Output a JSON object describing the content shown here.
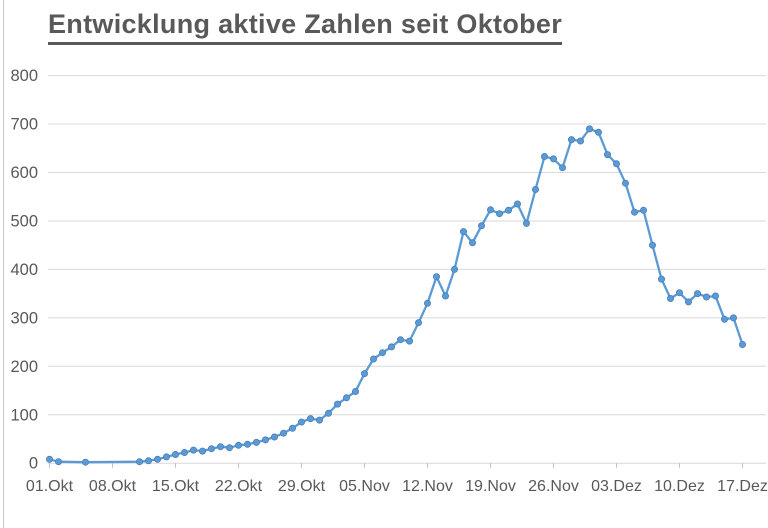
{
  "chart_data": {
    "type": "line",
    "title": "Entwicklung aktive Zahlen seit Oktober",
    "legend": "none",
    "grid": "horizontal",
    "marker": "circle",
    "ylim": [
      0,
      800
    ],
    "y_tick_step": 100,
    "y_tick_labels": [
      "0",
      "100",
      "200",
      "300",
      "400",
      "500",
      "600",
      "700",
      "800"
    ],
    "x_tick_labels": [
      "01.Okt",
      "08.Okt",
      "15.Okt",
      "22.Okt",
      "29.Okt",
      "05.Nov",
      "12.Nov",
      "19.Nov",
      "26.Nov",
      "03.Dez",
      "10.Dez",
      "17.Dez"
    ],
    "series_color": "#5B9BD5",
    "marker_edge_color": "#4A7EBB",
    "gridline_color": "#D9D9D9",
    "tick_color": "#BFBFBF",
    "label_color": "#595959",
    "title_color": "#595959",
    "points": [
      {
        "date": "01.Okt",
        "value": 8
      },
      {
        "date": "02.Okt",
        "value": 3
      },
      {
        "date": "05.Okt",
        "value": 2
      },
      {
        "date": "11.Okt",
        "value": 3
      },
      {
        "date": "12.Okt",
        "value": 5
      },
      {
        "date": "13.Okt",
        "value": 8
      },
      {
        "date": "14.Okt",
        "value": 13
      },
      {
        "date": "15.Okt",
        "value": 18
      },
      {
        "date": "16.Okt",
        "value": 22
      },
      {
        "date": "17.Okt",
        "value": 27
      },
      {
        "date": "18.Okt",
        "value": 25
      },
      {
        "date": "19.Okt",
        "value": 30
      },
      {
        "date": "20.Okt",
        "value": 34
      },
      {
        "date": "21.Okt",
        "value": 32
      },
      {
        "date": "22.Okt",
        "value": 37
      },
      {
        "date": "23.Okt",
        "value": 39
      },
      {
        "date": "24.Okt",
        "value": 43
      },
      {
        "date": "25.Okt",
        "value": 48
      },
      {
        "date": "26.Okt",
        "value": 54
      },
      {
        "date": "27.Okt",
        "value": 62
      },
      {
        "date": "28.Okt",
        "value": 72
      },
      {
        "date": "29.Okt",
        "value": 85
      },
      {
        "date": "30.Okt",
        "value": 92
      },
      {
        "date": "31.Okt",
        "value": 89
      },
      {
        "date": "01.Nov",
        "value": 103
      },
      {
        "date": "02.Nov",
        "value": 122
      },
      {
        "date": "03.Nov",
        "value": 135
      },
      {
        "date": "04.Nov",
        "value": 148
      },
      {
        "date": "05.Nov",
        "value": 185
      },
      {
        "date": "06.Nov",
        "value": 215
      },
      {
        "date": "07.Nov",
        "value": 228
      },
      {
        "date": "08.Nov",
        "value": 240
      },
      {
        "date": "09.Nov",
        "value": 255
      },
      {
        "date": "10.Nov",
        "value": 252
      },
      {
        "date": "11.Nov",
        "value": 290
      },
      {
        "date": "12.Nov",
        "value": 330
      },
      {
        "date": "13.Nov",
        "value": 385
      },
      {
        "date": "14.Nov",
        "value": 345
      },
      {
        "date": "15.Nov",
        "value": 400
      },
      {
        "date": "16.Nov",
        "value": 478
      },
      {
        "date": "17.Nov",
        "value": 455
      },
      {
        "date": "18.Nov",
        "value": 490
      },
      {
        "date": "19.Nov",
        "value": 523
      },
      {
        "date": "20.Nov",
        "value": 515
      },
      {
        "date": "21.Nov",
        "value": 522
      },
      {
        "date": "22.Nov",
        "value": 535
      },
      {
        "date": "23.Nov",
        "value": 495
      },
      {
        "date": "24.Nov",
        "value": 565
      },
      {
        "date": "25.Nov",
        "value": 633
      },
      {
        "date": "26.Nov",
        "value": 628
      },
      {
        "date": "27.Nov",
        "value": 610
      },
      {
        "date": "28.Nov",
        "value": 668
      },
      {
        "date": "29.Nov",
        "value": 665
      },
      {
        "date": "30.Nov",
        "value": 690
      },
      {
        "date": "01.Dez",
        "value": 683
      },
      {
        "date": "02.Dez",
        "value": 637
      },
      {
        "date": "03.Dez",
        "value": 618
      },
      {
        "date": "04.Dez",
        "value": 578
      },
      {
        "date": "05.Dez",
        "value": 518
      },
      {
        "date": "06.Dez",
        "value": 522
      },
      {
        "date": "07.Dez",
        "value": 450
      },
      {
        "date": "08.Dez",
        "value": 380
      },
      {
        "date": "09.Dez",
        "value": 340
      },
      {
        "date": "10.Dez",
        "value": 352
      },
      {
        "date": "11.Dez",
        "value": 333
      },
      {
        "date": "12.Dez",
        "value": 350
      },
      {
        "date": "13.Dez",
        "value": 343
      },
      {
        "date": "14.Dez",
        "value": 345
      },
      {
        "date": "15.Dez",
        "value": 297
      },
      {
        "date": "16.Dez",
        "value": 300
      },
      {
        "date": "17.Dez",
        "value": 245
      }
    ]
  }
}
